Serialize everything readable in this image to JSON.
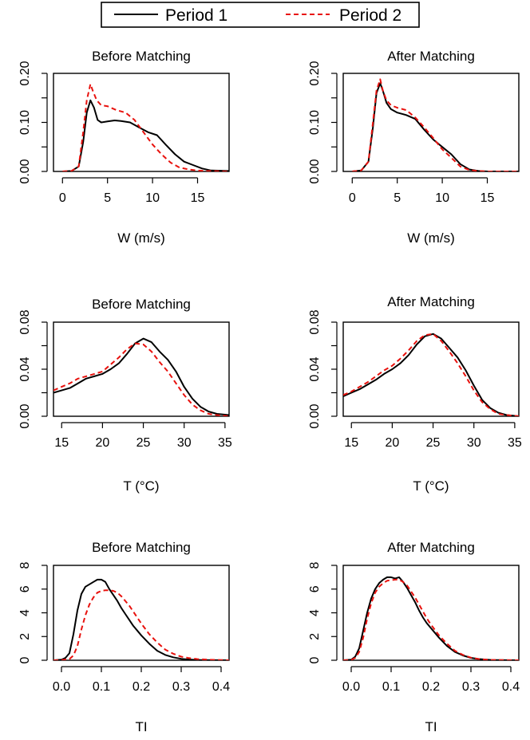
{
  "legend": {
    "entries": [
      {
        "label": "Period 1",
        "color": "#000000",
        "dash": "solid"
      },
      {
        "label": "Period 2",
        "color": "#e8120e",
        "dash": "dashed"
      }
    ]
  },
  "chart_data": [
    {
      "type": "line",
      "title": "Before Matching",
      "xlabel": "W (m/s)",
      "ylabel": "",
      "xlim": [
        -1,
        18.5
      ],
      "ylim": [
        0,
        0.2
      ],
      "xticks": [
        0,
        5,
        10,
        15
      ],
      "xtick_labels": [
        "0",
        "5",
        "10",
        "15"
      ],
      "yticks": [
        0,
        0.1,
        0.2
      ],
      "ytick_labels": [
        "0.00",
        "0.10",
        "0.20"
      ],
      "yticks_unlabeled": [
        0.05,
        0.15
      ],
      "series": [
        {
          "name": "Period 1",
          "x": [
            0,
            1,
            1.8,
            2.3,
            2.7,
            3.1,
            3.5,
            3.9,
            4.3,
            5,
            5.8,
            6.5,
            7.5,
            8.5,
            9.5,
            10.5,
            11.5,
            12.5,
            13.5,
            14.5,
            15.5,
            16.5,
            18.5
          ],
          "y": [
            0,
            0.001,
            0.01,
            0.06,
            0.12,
            0.145,
            0.13,
            0.105,
            0.1,
            0.102,
            0.104,
            0.103,
            0.1,
            0.09,
            0.08,
            0.074,
            0.054,
            0.035,
            0.02,
            0.013,
            0.006,
            0.002,
            0.001
          ]
        },
        {
          "name": "Period 2",
          "x": [
            0,
            1,
            1.8,
            2.3,
            2.7,
            3.1,
            3.4,
            3.8,
            4.3,
            5,
            6,
            7,
            8,
            9,
            10,
            11,
            12,
            13,
            14,
            15,
            16,
            18.5
          ],
          "y": [
            0,
            0.001,
            0.01,
            0.08,
            0.145,
            0.178,
            0.163,
            0.145,
            0.135,
            0.133,
            0.125,
            0.12,
            0.105,
            0.08,
            0.055,
            0.035,
            0.018,
            0.008,
            0.004,
            0.002,
            0.001,
            0
          ]
        }
      ]
    },
    {
      "type": "line",
      "title": "After Matching",
      "xlabel": "W (m/s)",
      "ylabel": "",
      "xlim": [
        -1,
        18.5
      ],
      "ylim": [
        0,
        0.2
      ],
      "xticks": [
        0,
        5,
        10,
        15
      ],
      "xtick_labels": [
        "0",
        "5",
        "10",
        "15"
      ],
      "yticks": [
        0,
        0.1,
        0.2
      ],
      "ytick_labels": [
        "0.00",
        "0.10",
        "0.20"
      ],
      "yticks_unlabeled": [
        0.05,
        0.15
      ],
      "series": [
        {
          "name": "Period 1",
          "x": [
            0,
            1,
            1.8,
            2.3,
            2.7,
            3.1,
            3.4,
            3.8,
            4.3,
            5,
            6,
            7,
            8,
            9,
            10,
            11,
            12,
            13,
            14,
            15,
            16,
            18.5
          ],
          "y": [
            0,
            0.002,
            0.02,
            0.09,
            0.16,
            0.18,
            0.165,
            0.14,
            0.127,
            0.12,
            0.115,
            0.107,
            0.085,
            0.065,
            0.05,
            0.035,
            0.015,
            0.004,
            0.001,
            0,
            0,
            0
          ]
        },
        {
          "name": "Period 2",
          "x": [
            0,
            1,
            1.8,
            2.3,
            2.7,
            3.1,
            3.4,
            3.8,
            4.3,
            5,
            6,
            7,
            8,
            9,
            10,
            11,
            12,
            13,
            14,
            15,
            16,
            18.5
          ],
          "y": [
            0,
            0.002,
            0.02,
            0.1,
            0.165,
            0.188,
            0.165,
            0.145,
            0.135,
            0.13,
            0.125,
            0.11,
            0.09,
            0.068,
            0.045,
            0.028,
            0.01,
            0.003,
            0.001,
            0,
            0,
            0
          ]
        }
      ]
    },
    {
      "type": "line",
      "title": "Before Matching",
      "xlabel": "T (°C)",
      "ylabel": "",
      "xlim": [
        14,
        35.5
      ],
      "ylim": [
        0,
        0.08
      ],
      "xticks": [
        15,
        20,
        25,
        30,
        35
      ],
      "xtick_labels": [
        "15",
        "20",
        "25",
        "30",
        "35"
      ],
      "yticks": [
        0,
        0.04,
        0.08
      ],
      "ytick_labels": [
        "0.00",
        "0.04",
        "0.08"
      ],
      "yticks_unlabeled": [
        0.02,
        0.06
      ],
      "series": [
        {
          "name": "Period 1",
          "x": [
            14,
            15,
            16,
            17,
            18,
            19,
            20,
            21,
            22,
            23,
            24,
            25,
            26,
            27,
            28,
            29,
            30,
            31,
            32,
            33,
            34,
            35.5
          ],
          "y": [
            0.02,
            0.022,
            0.024,
            0.028,
            0.032,
            0.034,
            0.036,
            0.04,
            0.045,
            0.053,
            0.062,
            0.066,
            0.063,
            0.055,
            0.048,
            0.038,
            0.025,
            0.015,
            0.008,
            0.004,
            0.002,
            0.001
          ]
        },
        {
          "name": "Period 2",
          "x": [
            14,
            15,
            16,
            17,
            18,
            19,
            20,
            21,
            22,
            23,
            24,
            25,
            26,
            27,
            28,
            29,
            30,
            31,
            32,
            33,
            34,
            35.5
          ],
          "y": [
            0.022,
            0.025,
            0.028,
            0.032,
            0.034,
            0.036,
            0.038,
            0.044,
            0.05,
            0.057,
            0.062,
            0.061,
            0.055,
            0.046,
            0.038,
            0.028,
            0.018,
            0.01,
            0.005,
            0.002,
            0.001,
            0
          ]
        }
      ]
    },
    {
      "type": "line",
      "title": "After Matching",
      "xlabel": "T (°C)",
      "ylabel": "",
      "xlim": [
        14,
        35.5
      ],
      "ylim": [
        0,
        0.08
      ],
      "xticks": [
        15,
        20,
        25,
        30,
        35
      ],
      "xtick_labels": [
        "15",
        "20",
        "25",
        "30",
        "35"
      ],
      "yticks": [
        0,
        0.04,
        0.08
      ],
      "ytick_labels": [
        "0.00",
        "0.04",
        "0.08"
      ],
      "yticks_unlabeled": [
        0.02,
        0.06
      ],
      "series": [
        {
          "name": "Period 1",
          "x": [
            14,
            15,
            16,
            17,
            18,
            19,
            20,
            21,
            22,
            23,
            24,
            25,
            26,
            27,
            28,
            29,
            30,
            31,
            32,
            33,
            34,
            35.5
          ],
          "y": [
            0.017,
            0.02,
            0.023,
            0.027,
            0.031,
            0.036,
            0.04,
            0.045,
            0.052,
            0.061,
            0.068,
            0.07,
            0.066,
            0.058,
            0.05,
            0.039,
            0.026,
            0.014,
            0.007,
            0.003,
            0.001,
            0
          ]
        },
        {
          "name": "Period 2",
          "x": [
            14,
            15,
            16,
            17,
            18,
            19,
            20,
            21,
            22,
            23,
            24,
            25,
            26,
            27,
            28,
            29,
            30,
            31,
            32,
            33,
            34,
            35.5
          ],
          "y": [
            0.018,
            0.021,
            0.025,
            0.029,
            0.034,
            0.039,
            0.043,
            0.049,
            0.056,
            0.064,
            0.069,
            0.07,
            0.064,
            0.055,
            0.045,
            0.034,
            0.022,
            0.012,
            0.006,
            0.002,
            0.001,
            0
          ]
        }
      ]
    },
    {
      "type": "line",
      "title": "Before Matching",
      "xlabel": "TI",
      "ylabel": "",
      "xlim": [
        -0.02,
        0.42
      ],
      "ylim": [
        0,
        8
      ],
      "xticks": [
        0,
        0.1,
        0.2,
        0.3,
        0.4
      ],
      "xtick_labels": [
        "0.0",
        "0.1",
        "0.2",
        "0.3",
        "0.4"
      ],
      "yticks": [
        0,
        2,
        4,
        6,
        8
      ],
      "ytick_labels": [
        "0",
        "2",
        "4",
        "6",
        "8"
      ],
      "series": [
        {
          "name": "Period 1",
          "x": [
            -0.02,
            0,
            0.01,
            0.02,
            0.03,
            0.04,
            0.05,
            0.06,
            0.07,
            0.08,
            0.09,
            0.1,
            0.11,
            0.12,
            0.13,
            0.14,
            0.15,
            0.16,
            0.17,
            0.18,
            0.19,
            0.2,
            0.22,
            0.24,
            0.26,
            0.28,
            0.3,
            0.32,
            0.35,
            0.42
          ],
          "y": [
            0,
            0.05,
            0.2,
            0.6,
            2.2,
            4.2,
            5.6,
            6.2,
            6.4,
            6.6,
            6.8,
            6.8,
            6.6,
            6.0,
            5.5,
            5.0,
            4.4,
            3.9,
            3.4,
            2.9,
            2.5,
            2.1,
            1.4,
            0.8,
            0.45,
            0.25,
            0.12,
            0.06,
            0.02,
            0
          ]
        },
        {
          "name": "Period 2",
          "x": [
            -0.02,
            0,
            0.02,
            0.03,
            0.04,
            0.05,
            0.06,
            0.07,
            0.08,
            0.09,
            0.1,
            0.11,
            0.12,
            0.13,
            0.14,
            0.15,
            0.16,
            0.17,
            0.18,
            0.19,
            0.2,
            0.22,
            0.24,
            0.26,
            0.28,
            0.3,
            0.32,
            0.34,
            0.37,
            0.42
          ],
          "y": [
            0,
            0.02,
            0.1,
            0.4,
            1.2,
            2.6,
            3.8,
            4.7,
            5.3,
            5.7,
            5.85,
            5.9,
            5.9,
            5.85,
            5.7,
            5.4,
            5.0,
            4.6,
            4.1,
            3.6,
            3.1,
            2.2,
            1.5,
            0.9,
            0.55,
            0.3,
            0.18,
            0.1,
            0.05,
            0
          ]
        }
      ]
    },
    {
      "type": "line",
      "title": "After Matching",
      "xlabel": "TI",
      "ylabel": "",
      "xlim": [
        -0.02,
        0.42
      ],
      "ylim": [
        0,
        8
      ],
      "xticks": [
        0,
        0.1,
        0.2,
        0.3,
        0.4
      ],
      "xtick_labels": [
        "0.0",
        "0.1",
        "0.2",
        "0.3",
        "0.4"
      ],
      "yticks": [
        0,
        2,
        4,
        6,
        8
      ],
      "ytick_labels": [
        "0",
        "2",
        "4",
        "6",
        "8"
      ],
      "series": [
        {
          "name": "Period 1",
          "x": [
            -0.02,
            0,
            0.01,
            0.02,
            0.03,
            0.04,
            0.05,
            0.06,
            0.07,
            0.08,
            0.09,
            0.1,
            0.11,
            0.12,
            0.13,
            0.14,
            0.15,
            0.16,
            0.17,
            0.18,
            0.19,
            0.2,
            0.22,
            0.24,
            0.26,
            0.28,
            0.3,
            0.32,
            0.35,
            0.42
          ],
          "y": [
            0,
            0.05,
            0.3,
            1.0,
            2.5,
            4.0,
            5.2,
            6.0,
            6.5,
            6.8,
            7.0,
            7.0,
            6.9,
            7.0,
            6.6,
            6.1,
            5.5,
            4.9,
            4.2,
            3.6,
            3.1,
            2.7,
            1.9,
            1.2,
            0.7,
            0.4,
            0.2,
            0.1,
            0.03,
            0
          ]
        },
        {
          "name": "Period 2",
          "x": [
            -0.02,
            0,
            0.01,
            0.02,
            0.03,
            0.04,
            0.05,
            0.06,
            0.07,
            0.08,
            0.09,
            0.1,
            0.11,
            0.12,
            0.13,
            0.14,
            0.15,
            0.16,
            0.17,
            0.18,
            0.19,
            0.2,
            0.22,
            0.24,
            0.26,
            0.28,
            0.3,
            0.32,
            0.35,
            0.42
          ],
          "y": [
            0,
            0.03,
            0.2,
            0.7,
            1.9,
            3.5,
            4.8,
            5.7,
            6.2,
            6.5,
            6.7,
            6.75,
            6.8,
            6.8,
            6.6,
            6.3,
            5.8,
            5.3,
            4.7,
            4.1,
            3.5,
            3.0,
            2.1,
            1.4,
            0.8,
            0.45,
            0.22,
            0.1,
            0.03,
            0
          ]
        }
      ]
    }
  ]
}
